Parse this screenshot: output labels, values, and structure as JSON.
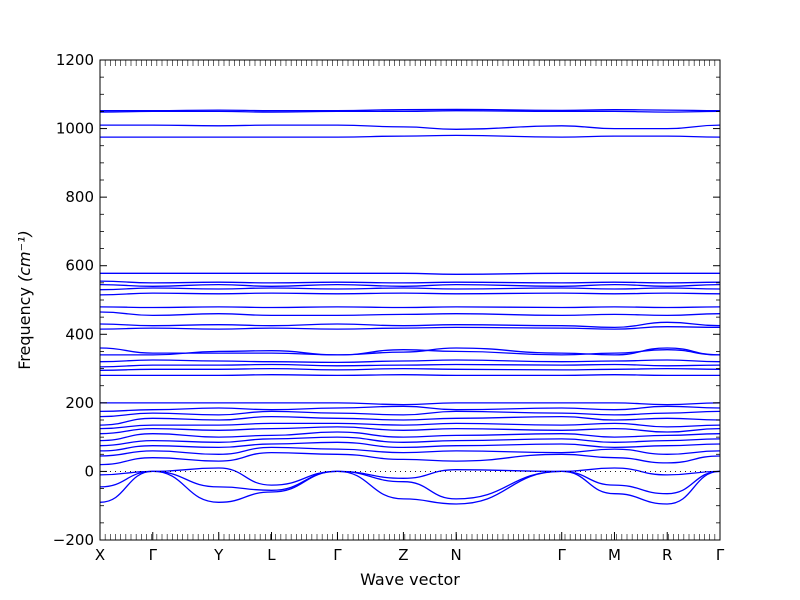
{
  "chart_data": {
    "type": "line",
    "title": "",
    "xlabel": "Wave vector",
    "ylabel": "Frequency",
    "ylabel_unit": "(cm⁻¹)",
    "ylim": [
      -200,
      1200
    ],
    "yticks": [
      -200,
      0,
      200,
      400,
      600,
      800,
      1000,
      1200
    ],
    "grid": false,
    "legend": "none",
    "zero_line": "dotted",
    "color": "#0000ff",
    "x_points": [
      {
        "label": "X",
        "pos": 0.0
      },
      {
        "label": "Γ",
        "pos": 1.0
      },
      {
        "label": "Y",
        "pos": 2.25
      },
      {
        "label": "L",
        "pos": 3.25
      },
      {
        "label": "Γ",
        "pos": 4.5
      },
      {
        "label": "Z",
        "pos": 5.75
      },
      {
        "label": "N",
        "pos": 6.75
      },
      {
        "label": "Γ",
        "pos": 8.75
      },
      {
        "label": "M",
        "pos": 9.75
      },
      {
        "label": "R",
        "pos": 10.75
      },
      {
        "label": "Γ",
        "pos": 11.75
      }
    ],
    "xlim": [
      0,
      11.75
    ],
    "bands": [
      {
        "name": "b1",
        "x": [
          0,
          1,
          2.25,
          3.25,
          4.5,
          5.75,
          6.75,
          8.75,
          9.75,
          10.75,
          11.75
        ],
        "values": [
          -90,
          0,
          -90,
          -60,
          0,
          -80,
          -95,
          0,
          -65,
          -95,
          0
        ]
      },
      {
        "name": "b2",
        "x": [
          0,
          1,
          2.25,
          3.25,
          4.5,
          5.75,
          6.75,
          8.75,
          9.75,
          10.75,
          11.75
        ],
        "values": [
          -45,
          0,
          -45,
          -55,
          0,
          -30,
          -80,
          0,
          -40,
          -65,
          0
        ]
      },
      {
        "name": "b3",
        "x": [
          0,
          1,
          2.25,
          3.25,
          4.5,
          5.75,
          6.75,
          8.75,
          9.75,
          10.75,
          11.75
        ],
        "values": [
          -10,
          0,
          10,
          -40,
          0,
          -20,
          5,
          0,
          10,
          -10,
          0
        ]
      },
      {
        "name": "b4",
        "x": [
          0,
          1,
          2.25,
          3.25,
          4.5,
          5.75,
          6.75,
          8.75,
          9.75,
          10.75,
          11.75
        ],
        "values": [
          20,
          40,
          30,
          55,
          50,
          35,
          30,
          50,
          40,
          25,
          45
        ]
      },
      {
        "name": "b5",
        "x": [
          0,
          1,
          2.25,
          3.25,
          4.5,
          5.75,
          6.75,
          8.75,
          9.75,
          10.75,
          11.75
        ],
        "values": [
          45,
          60,
          50,
          70,
          65,
          55,
          60,
          55,
          65,
          50,
          60
        ]
      },
      {
        "name": "b6",
        "x": [
          0,
          1,
          2.25,
          3.25,
          4.5,
          5.75,
          6.75,
          8.75,
          9.75,
          10.75,
          11.75
        ],
        "values": [
          60,
          75,
          70,
          80,
          85,
          70,
          75,
          80,
          70,
          75,
          80
        ]
      },
      {
        "name": "b7",
        "x": [
          0,
          1,
          2.25,
          3.25,
          4.5,
          5.75,
          6.75,
          8.75,
          9.75,
          10.75,
          11.75
        ],
        "values": [
          75,
          90,
          85,
          95,
          100,
          85,
          90,
          95,
          85,
          90,
          95
        ]
      },
      {
        "name": "b8",
        "x": [
          0,
          1,
          2.25,
          3.25,
          4.5,
          5.75,
          6.75,
          8.75,
          9.75,
          10.75,
          11.75
        ],
        "values": [
          90,
          110,
          100,
          105,
          115,
          100,
          105,
          110,
          100,
          105,
          110
        ]
      },
      {
        "name": "b9",
        "x": [
          0,
          1,
          2.25,
          3.25,
          4.5,
          5.75,
          6.75,
          8.75,
          9.75,
          10.75,
          11.75
        ],
        "values": [
          110,
          125,
          120,
          125,
          130,
          120,
          125,
          120,
          125,
          115,
          125
        ]
      },
      {
        "name": "b10",
        "x": [
          0,
          1,
          2.25,
          3.25,
          4.5,
          5.75,
          6.75,
          8.75,
          9.75,
          10.75,
          11.75
        ],
        "values": [
          125,
          135,
          135,
          140,
          140,
          135,
          140,
          135,
          140,
          130,
          135
        ]
      },
      {
        "name": "b11",
        "x": [
          0,
          1,
          2.25,
          3.25,
          4.5,
          5.75,
          6.75,
          8.75,
          9.75,
          10.75,
          11.75
        ],
        "values": [
          135,
          155,
          150,
          160,
          155,
          150,
          155,
          160,
          150,
          155,
          150
        ]
      },
      {
        "name": "b12",
        "x": [
          0,
          1,
          2.25,
          3.25,
          4.5,
          5.75,
          6.75,
          8.75,
          9.75,
          10.75,
          11.75
        ],
        "values": [
          160,
          170,
          165,
          175,
          170,
          165,
          175,
          170,
          165,
          170,
          175
        ]
      },
      {
        "name": "b13",
        "x": [
          0,
          1,
          2.25,
          3.25,
          4.5,
          5.75,
          6.75,
          8.75,
          9.75,
          10.75,
          11.75
        ],
        "values": [
          175,
          180,
          185,
          180,
          185,
          190,
          180,
          185,
          180,
          190,
          185
        ]
      },
      {
        "name": "b14",
        "x": [
          0,
          1,
          2.25,
          3.25,
          4.5,
          5.75,
          6.75,
          8.75,
          9.75,
          10.75,
          11.75
        ],
        "values": [
          200,
          200,
          200,
          200,
          200,
          195,
          200,
          200,
          200,
          195,
          200
        ]
      },
      {
        "name": "b15",
        "x": [
          0,
          1,
          2.25,
          3.25,
          4.5,
          5.75,
          6.75,
          8.75,
          9.75,
          10.75,
          11.75
        ],
        "values": [
          280,
          280,
          280,
          282,
          280,
          282,
          280,
          280,
          282,
          280,
          280
        ]
      },
      {
        "name": "b16",
        "x": [
          0,
          1,
          2.25,
          3.25,
          4.5,
          5.75,
          6.75,
          8.75,
          9.75,
          10.75,
          11.75
        ],
        "values": [
          295,
          298,
          298,
          300,
          296,
          300,
          298,
          296,
          298,
          300,
          298
        ]
      },
      {
        "name": "b17",
        "x": [
          0,
          1,
          2.25,
          3.25,
          4.5,
          5.75,
          6.75,
          8.75,
          9.75,
          10.75,
          11.75
        ],
        "values": [
          305,
          310,
          310,
          312,
          308,
          310,
          312,
          310,
          312,
          308,
          310
        ]
      },
      {
        "name": "b18",
        "x": [
          0,
          1,
          2.25,
          3.25,
          4.5,
          5.75,
          6.75,
          8.75,
          9.75,
          10.75,
          11.75
        ],
        "values": [
          320,
          325,
          322,
          320,
          318,
          322,
          325,
          320,
          322,
          325,
          320
        ]
      },
      {
        "name": "b19",
        "x": [
          0,
          1,
          2.25,
          3.25,
          4.5,
          5.75,
          6.75,
          8.75,
          9.75,
          10.75,
          11.75
        ],
        "values": [
          340,
          340,
          350,
          352,
          340,
          355,
          350,
          340,
          345,
          355,
          340
        ]
      },
      {
        "name": "b20",
        "x": [
          0,
          1,
          2.25,
          3.25,
          4.5,
          5.75,
          6.75,
          8.75,
          9.75,
          10.75,
          11.75
        ],
        "values": [
          360,
          345,
          345,
          345,
          340,
          348,
          360,
          345,
          340,
          360,
          340
        ]
      },
      {
        "name": "b21",
        "x": [
          0,
          1,
          2.25,
          3.25,
          4.5,
          5.75,
          6.75,
          8.75,
          9.75,
          10.75,
          11.75
        ],
        "values": [
          415,
          418,
          415,
          418,
          415,
          418,
          420,
          418,
          415,
          422,
          420
        ]
      },
      {
        "name": "b22",
        "x": [
          0,
          1,
          2.25,
          3.25,
          4.5,
          5.75,
          6.75,
          8.75,
          9.75,
          10.75,
          11.75
        ],
        "values": [
          430,
          425,
          428,
          425,
          430,
          425,
          428,
          425,
          420,
          435,
          425
        ]
      },
      {
        "name": "b23",
        "x": [
          0,
          1,
          2.25,
          3.25,
          4.5,
          5.75,
          6.75,
          8.75,
          9.75,
          10.75,
          11.75
        ],
        "values": [
          465,
          455,
          460,
          455,
          455,
          458,
          460,
          455,
          458,
          455,
          460
        ]
      },
      {
        "name": "b24",
        "x": [
          0,
          1,
          2.25,
          3.25,
          4.5,
          5.75,
          6.75,
          8.75,
          9.75,
          10.75,
          11.75
        ],
        "values": [
          480,
          478,
          480,
          478,
          480,
          478,
          480,
          478,
          480,
          478,
          480
        ]
      },
      {
        "name": "b25",
        "x": [
          0,
          1,
          2.25,
          3.25,
          4.5,
          5.75,
          6.75,
          8.75,
          9.75,
          10.75,
          11.75
        ],
        "values": [
          515,
          520,
          518,
          520,
          518,
          520,
          518,
          520,
          518,
          520,
          518
        ]
      },
      {
        "name": "b26",
        "x": [
          0,
          1,
          2.25,
          3.25,
          4.5,
          5.75,
          6.75,
          8.75,
          9.75,
          10.75,
          11.75
        ],
        "values": [
          530,
          535,
          532,
          535,
          532,
          535,
          532,
          535,
          532,
          535,
          532
        ]
      },
      {
        "name": "b27",
        "x": [
          0,
          1,
          2.25,
          3.25,
          4.5,
          5.75,
          6.75,
          8.75,
          9.75,
          10.75,
          11.75
        ],
        "values": [
          545,
          540,
          545,
          540,
          545,
          540,
          545,
          540,
          545,
          540,
          545
        ]
      },
      {
        "name": "b28",
        "x": [
          0,
          1,
          2.25,
          3.25,
          4.5,
          5.75,
          6.75,
          8.75,
          9.75,
          10.75,
          11.75
        ],
        "values": [
          555,
          550,
          552,
          550,
          552,
          550,
          552,
          550,
          552,
          550,
          552
        ]
      },
      {
        "name": "b29",
        "x": [
          0,
          1,
          2.25,
          3.25,
          4.5,
          5.75,
          6.75,
          8.75,
          9.75,
          10.75,
          11.75
        ],
        "values": [
          578,
          578,
          578,
          578,
          578,
          578,
          575,
          578,
          578,
          578,
          578
        ]
      },
      {
        "name": "b30",
        "x": [
          0,
          1,
          2.25,
          3.25,
          4.5,
          5.75,
          6.75,
          8.75,
          9.75,
          10.75,
          11.75
        ],
        "values": [
          975,
          975,
          975,
          975,
          975,
          978,
          980,
          975,
          978,
          978,
          975
        ]
      },
      {
        "name": "b31",
        "x": [
          0,
          1,
          2.25,
          3.25,
          4.5,
          5.75,
          6.75,
          8.75,
          9.75,
          10.75,
          11.75
        ],
        "values": [
          1010,
          1010,
          1008,
          1010,
          1010,
          1005,
          998,
          1008,
          1000,
          1000,
          1010
        ]
      },
      {
        "name": "b32",
        "x": [
          0,
          1,
          2.25,
          3.25,
          4.5,
          5.75,
          6.75,
          8.75,
          9.75,
          10.75,
          11.75
        ],
        "values": [
          1048,
          1050,
          1050,
          1048,
          1050,
          1050,
          1052,
          1050,
          1050,
          1048,
          1050
        ]
      },
      {
        "name": "b33",
        "x": [
          0,
          1,
          2.25,
          3.25,
          4.5,
          5.75,
          6.75,
          8.75,
          9.75,
          10.75,
          11.75
        ],
        "values": [
          1052,
          1052,
          1054,
          1052,
          1052,
          1055,
          1056,
          1053,
          1055,
          1054,
          1052
        ]
      }
    ]
  }
}
